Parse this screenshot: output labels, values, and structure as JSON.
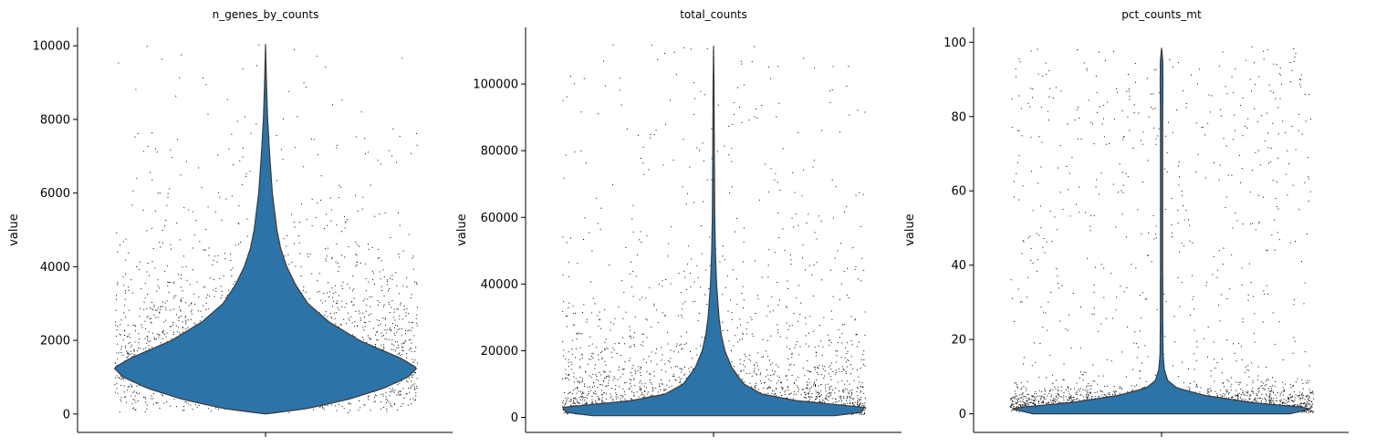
{
  "figure": {
    "violin_color": "#2c73a8",
    "violin_edge_color": "#3a3a3a",
    "point_color": "#000000"
  },
  "chart_data": [
    {
      "type": "violin",
      "title": "n_genes_by_counts",
      "ylabel": "value",
      "xlabel": "",
      "ylim": [
        -500,
        10500
      ],
      "yticks": [
        0,
        2000,
        4000,
        6000,
        8000,
        10000
      ],
      "ytick_labels": [
        "0",
        "2000",
        "4000",
        "6000",
        "8000",
        "10000"
      ],
      "min": 0,
      "max": 10050,
      "mode": 1250,
      "density_profile": [
        {
          "value": 0,
          "half_width": 0.0
        },
        {
          "value": 150,
          "half_width": 0.28
        },
        {
          "value": 400,
          "half_width": 0.55
        },
        {
          "value": 700,
          "half_width": 0.78
        },
        {
          "value": 1000,
          "half_width": 0.94
        },
        {
          "value": 1250,
          "half_width": 1.0
        },
        {
          "value": 1500,
          "half_width": 0.9
        },
        {
          "value": 2000,
          "half_width": 0.62
        },
        {
          "value": 2500,
          "half_width": 0.42
        },
        {
          "value": 3000,
          "half_width": 0.28
        },
        {
          "value": 3500,
          "half_width": 0.2
        },
        {
          "value": 4000,
          "half_width": 0.14
        },
        {
          "value": 4500,
          "half_width": 0.1
        },
        {
          "value": 5000,
          "half_width": 0.075
        },
        {
          "value": 6000,
          "half_width": 0.045
        },
        {
          "value": 7000,
          "half_width": 0.028
        },
        {
          "value": 8000,
          "half_width": 0.014
        },
        {
          "value": 9000,
          "half_width": 0.006
        },
        {
          "value": 10050,
          "half_width": 0.0
        }
      ]
    },
    {
      "type": "violin",
      "title": "total_counts",
      "ylabel": "value",
      "xlabel": "",
      "ylim": [
        -4500,
        117000
      ],
      "yticks": [
        0,
        20000,
        40000,
        60000,
        80000,
        100000
      ],
      "ytick_labels": [
        "0",
        "20000",
        "40000",
        "60000",
        "80000",
        "100000"
      ],
      "min": 500,
      "max": 111500,
      "mode": 3000,
      "density_profile": [
        {
          "value": 500,
          "half_width": 0.8
        },
        {
          "value": 1500,
          "half_width": 0.97
        },
        {
          "value": 3000,
          "half_width": 1.0
        },
        {
          "value": 5000,
          "half_width": 0.55
        },
        {
          "value": 7000,
          "half_width": 0.32
        },
        {
          "value": 10000,
          "half_width": 0.2
        },
        {
          "value": 15000,
          "half_width": 0.12
        },
        {
          "value": 20000,
          "half_width": 0.075
        },
        {
          "value": 25000,
          "half_width": 0.05
        },
        {
          "value": 30000,
          "half_width": 0.036
        },
        {
          "value": 40000,
          "half_width": 0.02
        },
        {
          "value": 50000,
          "half_width": 0.012
        },
        {
          "value": 60000,
          "half_width": 0.008
        },
        {
          "value": 80000,
          "half_width": 0.005
        },
        {
          "value": 100000,
          "half_width": 0.003
        },
        {
          "value": 111500,
          "half_width": 0.0
        }
      ]
    },
    {
      "type": "violin",
      "title": "pct_counts_mt",
      "ylabel": "value",
      "xlabel": "",
      "ylim": [
        -5,
        104
      ],
      "yticks": [
        0,
        20,
        40,
        60,
        80,
        100
      ],
      "ytick_labels": [
        "0",
        "20",
        "40",
        "60",
        "80",
        "100"
      ],
      "min": 0,
      "max": 98.5,
      "mode": 1.5,
      "density_profile": [
        {
          "value": 0,
          "half_width": 0.85
        },
        {
          "value": 1.5,
          "half_width": 1.0
        },
        {
          "value": 3,
          "half_width": 0.6
        },
        {
          "value": 5,
          "half_width": 0.28
        },
        {
          "value": 7,
          "half_width": 0.1
        },
        {
          "value": 9,
          "half_width": 0.04
        },
        {
          "value": 12,
          "half_width": 0.018
        },
        {
          "value": 16,
          "half_width": 0.01
        },
        {
          "value": 25,
          "half_width": 0.008
        },
        {
          "value": 50,
          "half_width": 0.007
        },
        {
          "value": 75,
          "half_width": 0.007
        },
        {
          "value": 90,
          "half_width": 0.009
        },
        {
          "value": 95,
          "half_width": 0.008
        },
        {
          "value": 98.5,
          "half_width": 0.0
        }
      ]
    }
  ]
}
